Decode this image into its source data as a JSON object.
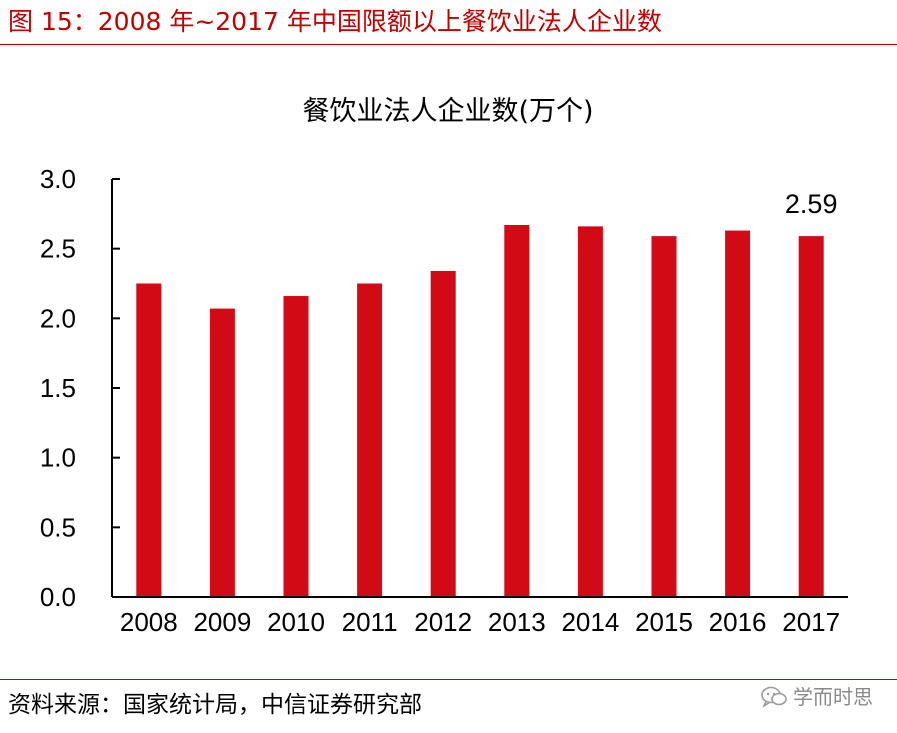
{
  "figure_title": "图 15：2008 年~2017 年中国限额以上餐饮业法人企业数",
  "source": "资料来源：国家统计局，中信证券研究部",
  "watermark": {
    "icon": "chat-bubble-icon",
    "text": "学而时思"
  },
  "colors": {
    "accent": "#c00000",
    "bar": "#d10a16",
    "watermark": "#8a8a8a"
  },
  "chart_data": {
    "type": "bar",
    "title": "餐饮业法人企业数(万个)",
    "xlabel": "",
    "ylabel": "",
    "categories": [
      "2008",
      "2009",
      "2010",
      "2011",
      "2012",
      "2013",
      "2014",
      "2015",
      "2016",
      "2017"
    ],
    "values": [
      2.25,
      2.07,
      2.16,
      2.25,
      2.34,
      2.67,
      2.66,
      2.59,
      2.63,
      2.59
    ],
    "ylim": [
      0,
      3.0
    ],
    "yticks": [
      "0.0",
      "0.5",
      "1.0",
      "1.5",
      "2.0",
      "2.5",
      "3.0"
    ],
    "annotations": [
      {
        "category": "2017",
        "text": "2.59"
      }
    ],
    "grid": false,
    "legend": "none"
  }
}
